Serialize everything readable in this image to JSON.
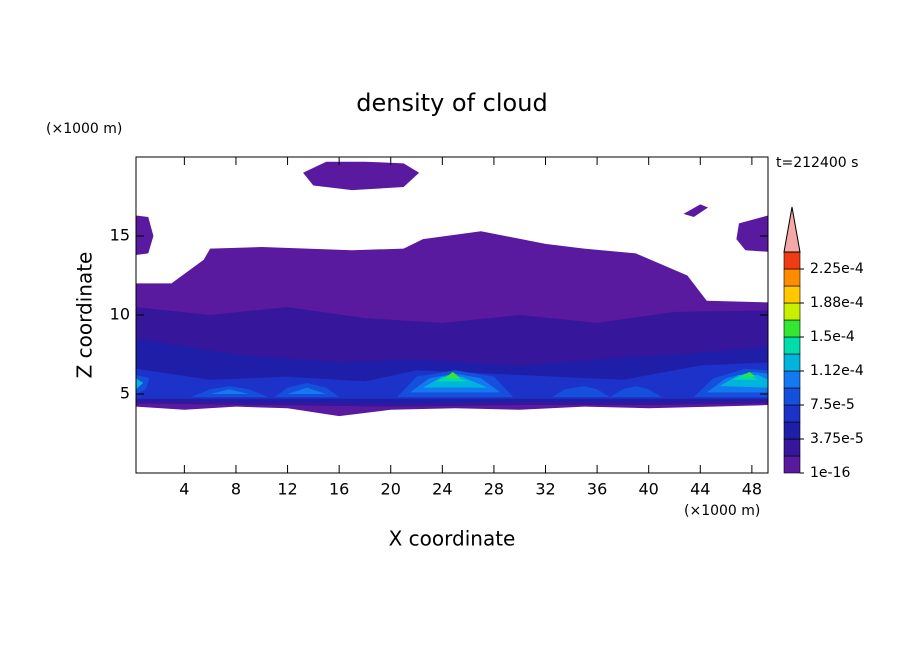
{
  "chart_data": {
    "type": "contour",
    "title": "density of cloud",
    "x_label": "X coordinate",
    "y_label": "Z coordinate",
    "x_unit": "(×1000 m)",
    "y_unit": "(×1000 m)",
    "time_label": "t=212400 s",
    "xlim": [
      0.25,
      49.25
    ],
    "ylim": [
      0,
      20
    ],
    "xticks": [
      4,
      8,
      12,
      16,
      20,
      24,
      28,
      32,
      36,
      40,
      44,
      48
    ],
    "yticks": [
      5,
      10,
      15
    ],
    "levels": [
      1e-16,
      1.875e-05,
      3.75e-05,
      5.625e-05,
      7.5e-05,
      9.375e-05,
      0.0001125,
      0.00013125,
      0.00015,
      0.00016875,
      0.0001875,
      0.00020625,
      0.000225,
      0.00024375
    ],
    "colors": [
      "#5a1aa0",
      "#36169a",
      "#1e1ea8",
      "#1c32c8",
      "#1450dc",
      "#1478f0",
      "#00b4dc",
      "#00dcaa",
      "#32e632",
      "#c8f000",
      "#ffc800",
      "#ff8c00",
      "#f03c14"
    ],
    "extend_color": "#f4a8a8",
    "colorbar_ticks": [
      {
        "value": 1e-16,
        "label": "1e-16"
      },
      {
        "value": 3.75e-05,
        "label": "3.75e-5"
      },
      {
        "value": 7.5e-05,
        "label": "7.5e-5"
      },
      {
        "value": 0.0001125,
        "label": "1.12e-4"
      },
      {
        "value": 0.00015,
        "label": "1.5e-4"
      },
      {
        "value": 0.0001875,
        "label": "1.88e-4"
      },
      {
        "value": 0.000225,
        "label": "2.25e-4"
      }
    ],
    "contours": [
      {
        "level": 1e-16,
        "x": [
          0.25,
          3,
          5.5,
          6,
          10,
          17,
          21,
          22.5,
          27,
          32,
          35,
          39,
          43,
          44.5,
          49.25,
          49.25,
          45,
          40,
          35,
          30,
          25,
          20,
          16,
          12,
          8,
          4,
          0.25
        ],
        "z": [
          12,
          12,
          13.5,
          14.2,
          14.3,
          14.1,
          14.2,
          14.8,
          15.3,
          14.5,
          14.2,
          13.9,
          12.5,
          10.9,
          10.8,
          4.3,
          4.2,
          4.1,
          4.2,
          4.0,
          4.1,
          4.0,
          3.6,
          4.1,
          4.2,
          4.0,
          4.2
        ]
      },
      {
        "level": 1e-16,
        "x": [
          13.2,
          15,
          18,
          21,
          22.2,
          21,
          17,
          14
        ],
        "z": [
          19.0,
          19.7,
          19.7,
          19.6,
          19.0,
          18.1,
          17.9,
          18.2
        ]
      },
      {
        "level": 1e-16,
        "x": [
          0.25,
          1.2,
          1.6,
          1.2,
          0.25
        ],
        "z": [
          16.3,
          16.2,
          15.0,
          13.9,
          13.8
        ]
      },
      {
        "level": 1e-16,
        "x": [
          47,
          49.25,
          49.25,
          47.5,
          46.8
        ],
        "z": [
          15.8,
          16.3,
          14.0,
          14.1,
          14.8
        ]
      },
      {
        "level": 1e-16,
        "x": [
          42.7,
          44,
          44.6,
          43.5
        ],
        "z": [
          16.4,
          17.0,
          16.8,
          16.2
        ]
      },
      {
        "level": 1.875e-05,
        "x": [
          0.25,
          6,
          12,
          18,
          24,
          30,
          36,
          42,
          49.25,
          49.25,
          40,
          30,
          20,
          10,
          0.25
        ],
        "z": [
          10.5,
          10,
          10.5,
          9.8,
          9.5,
          10,
          9.5,
          10.2,
          10.3,
          4.4,
          4.3,
          4.3,
          4.2,
          4.3,
          4.4
        ]
      },
      {
        "level": 3.75e-05,
        "x": [
          0.25,
          8,
          16,
          22,
          30,
          38,
          44,
          49.25,
          49.25,
          40,
          30,
          20,
          10,
          0.25
        ],
        "z": [
          8.5,
          7.5,
          7,
          7.2,
          6.8,
          7.3,
          7.6,
          8,
          4.6,
          4.5,
          4.5,
          4.4,
          4.5,
          4.6
        ]
      },
      {
        "level": 5.625e-05,
        "x": [
          0.25,
          6,
          12,
          18,
          22,
          30,
          38,
          44,
          49.25,
          49.25,
          30,
          0.25
        ],
        "z": [
          6.6,
          5.9,
          6.1,
          5.8,
          6.5,
          6.2,
          5.9,
          6.8,
          7.0,
          4.7,
          4.7,
          4.7
        ]
      },
      {
        "level": 7.5e-05,
        "x": [
          4.5,
          6,
          7.5,
          9,
          10.5
        ],
        "z": [
          4.8,
          5.3,
          5.5,
          5.3,
          4.8
        ]
      },
      {
        "level": 7.5e-05,
        "x": [
          11,
          12,
          13.5,
          15,
          16
        ],
        "z": [
          4.8,
          5.4,
          5.7,
          5.4,
          4.8
        ]
      },
      {
        "level": 7.5e-05,
        "x": [
          20.5,
          22,
          25,
          28,
          29.5
        ],
        "z": [
          4.8,
          6.1,
          6.5,
          6.1,
          4.8
        ]
      },
      {
        "level": 7.5e-05,
        "x": [
          32.5,
          33.5,
          35,
          36,
          37
        ],
        "z": [
          4.8,
          5.3,
          5.5,
          5.3,
          4.8
        ]
      },
      {
        "level": 7.5e-05,
        "x": [
          37,
          38,
          39,
          40,
          41
        ],
        "z": [
          4.8,
          5.3,
          5.5,
          5.3,
          4.8
        ]
      },
      {
        "level": 7.5e-05,
        "x": [
          43.5,
          45,
          47.5,
          49.25,
          49.25
        ],
        "z": [
          4.8,
          6.0,
          6.6,
          6.5,
          4.8
        ]
      },
      {
        "level": 7.5e-05,
        "x": [
          0.25,
          1,
          1.3,
          0.25
        ],
        "z": [
          5.0,
          5.3,
          6.0,
          6.2
        ]
      },
      {
        "level": 9.375e-05,
        "x": [
          21.5,
          23,
          25,
          27,
          28.5
        ],
        "z": [
          5.1,
          6.0,
          6.3,
          6.0,
          5.1
        ]
      },
      {
        "level": 9.375e-05,
        "x": [
          44.5,
          46,
          48,
          49.25,
          49.25
        ],
        "z": [
          5.1,
          6.0,
          6.4,
          6.3,
          5.1
        ]
      },
      {
        "level": 9.375e-05,
        "x": [
          6,
          7.5,
          9
        ],
        "z": [
          5.0,
          5.3,
          5.0
        ]
      },
      {
        "level": 9.375e-05,
        "x": [
          12,
          13.5,
          15
        ],
        "z": [
          5.0,
          5.4,
          5.0
        ]
      },
      {
        "level": 0.0001125,
        "x": [
          22.5,
          24,
          25.5,
          27.5
        ],
        "z": [
          5.4,
          6.1,
          6.1,
          5.4
        ]
      },
      {
        "level": 0.0001125,
        "x": [
          45.5,
          47,
          48.5,
          49.25,
          49.25
        ],
        "z": [
          5.5,
          6.2,
          6.2,
          5.9,
          5.4
        ]
      },
      {
        "level": 0.0001125,
        "x": [
          0.25,
          0.8,
          0.25
        ],
        "z": [
          5.3,
          5.7,
          6.0
        ]
      },
      {
        "level": 0.00013125,
        "x": [
          23.5,
          24.5,
          26
        ],
        "z": [
          5.8,
          6.2,
          5.8
        ]
      },
      {
        "level": 0.00013125,
        "x": [
          46.5,
          47.5,
          48.5
        ],
        "z": [
          5.9,
          6.3,
          5.9
        ]
      },
      {
        "level": 0.00015,
        "x": [
          24.2,
          24.8,
          25.4
        ],
        "z": [
          6.0,
          6.4,
          6.0
        ]
      },
      {
        "level": 0.00015,
        "x": [
          47.2,
          47.8,
          48.3
        ],
        "z": [
          6.1,
          6.4,
          6.1
        ]
      }
    ]
  }
}
